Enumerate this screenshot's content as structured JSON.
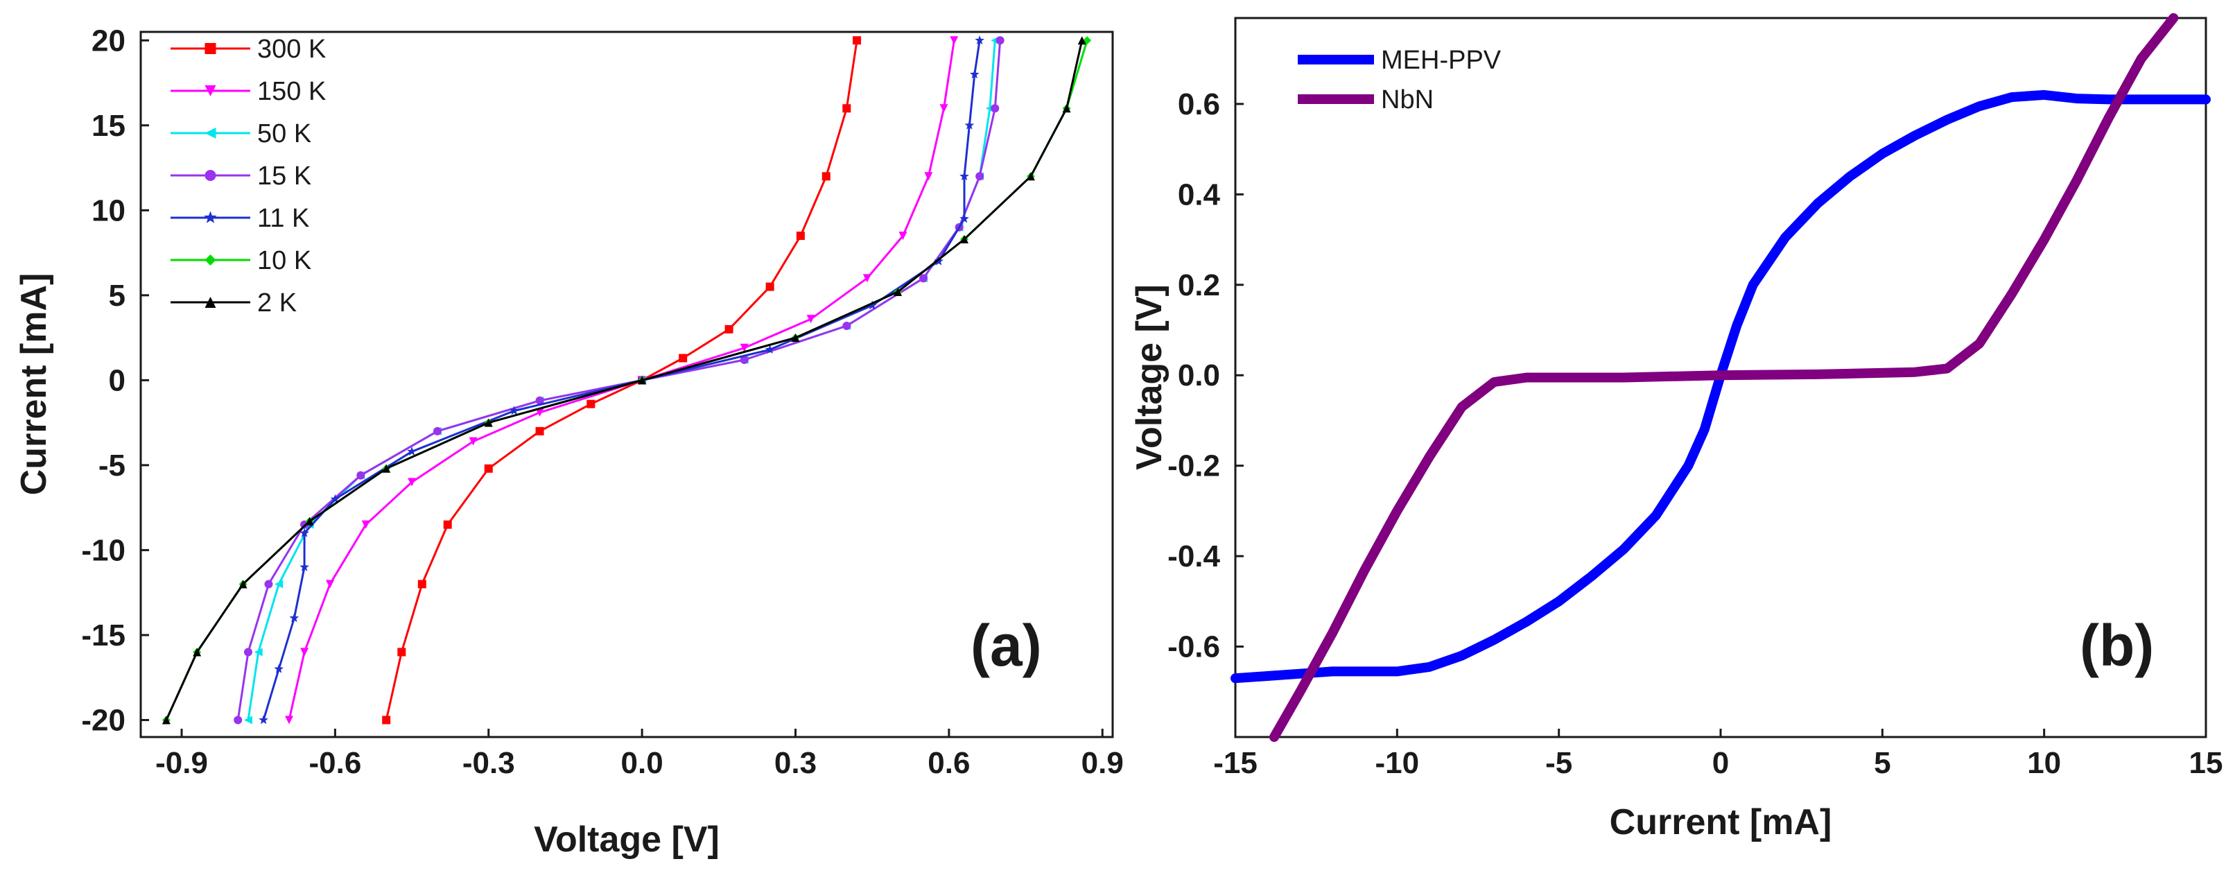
{
  "chart_data": [
    {
      "type": "line",
      "panel_label": "(a)",
      "xlabel": "Voltage [V]",
      "ylabel": "Current [mA]",
      "xlim": [
        -0.98,
        0.92
      ],
      "ylim": [
        -21,
        20.5
      ],
      "xticks": [
        -0.9,
        -0.6,
        -0.3,
        0.0,
        0.3,
        0.6,
        0.9
      ],
      "xtick_labels": [
        "-0.9",
        "-0.6",
        "-0.3",
        "0.0",
        "0.3",
        "0.6",
        "0.9"
      ],
      "yticks": [
        -20,
        -15,
        -10,
        -5,
        0,
        5,
        10,
        15,
        20
      ],
      "ytick_labels": [
        "-20",
        "-15",
        "-10",
        "-5",
        "0",
        "5",
        "10",
        "15",
        "20"
      ],
      "legend_position": "top-left",
      "series": [
        {
          "name": "300 K",
          "legend_label": "300 K",
          "color": "#ff0000",
          "marker": "square",
          "points": [
            [
              -0.5,
              -20
            ],
            [
              -0.47,
              -16
            ],
            [
              -0.43,
              -12
            ],
            [
              -0.38,
              -8.5
            ],
            [
              -0.3,
              -5.2
            ],
            [
              -0.2,
              -3
            ],
            [
              -0.1,
              -1.4
            ],
            [
              0,
              0
            ],
            [
              0.08,
              1.3
            ],
            [
              0.17,
              3
            ],
            [
              0.25,
              5.5
            ],
            [
              0.31,
              8.5
            ],
            [
              0.36,
              12
            ],
            [
              0.4,
              16
            ],
            [
              0.42,
              20
            ]
          ]
        },
        {
          "name": "150 K",
          "legend_label": "150 K",
          "color": "#ff00ff",
          "marker": "triangle-down",
          "points": [
            [
              -0.69,
              -20
            ],
            [
              -0.66,
              -16
            ],
            [
              -0.61,
              -12
            ],
            [
              -0.54,
              -8.5
            ],
            [
              -0.45,
              -6
            ],
            [
              -0.33,
              -3.6
            ],
            [
              -0.2,
              -1.9
            ],
            [
              0,
              0
            ],
            [
              0.2,
              1.9
            ],
            [
              0.33,
              3.6
            ],
            [
              0.44,
              6
            ],
            [
              0.51,
              8.5
            ],
            [
              0.56,
              12
            ],
            [
              0.59,
              16
            ],
            [
              0.61,
              20
            ]
          ]
        },
        {
          "name": "50 K",
          "legend_label": "50 K",
          "color": "#00e5ee",
          "marker": "triangle-left",
          "points": [
            [
              -0.77,
              -20
            ],
            [
              -0.75,
              -16
            ],
            [
              -0.71,
              -12
            ],
            [
              -0.65,
              -8.5
            ],
            [
              -0.55,
              -5.6
            ],
            [
              -0.4,
              -3
            ],
            [
              -0.2,
              -1.2
            ],
            [
              0,
              0
            ],
            [
              0.2,
              1.2
            ],
            [
              0.4,
              3.2
            ],
            [
              0.55,
              6
            ],
            [
              0.62,
              9
            ],
            [
              0.66,
              12
            ],
            [
              0.68,
              16
            ],
            [
              0.69,
              20
            ]
          ]
        },
        {
          "name": "15 K",
          "legend_label": "15 K",
          "color": "#9933ee",
          "marker": "circle",
          "points": [
            [
              -0.79,
              -20
            ],
            [
              -0.77,
              -16
            ],
            [
              -0.73,
              -12
            ],
            [
              -0.66,
              -8.5
            ],
            [
              -0.55,
              -5.6
            ],
            [
              -0.4,
              -3
            ],
            [
              -0.2,
              -1.2
            ],
            [
              0,
              0
            ],
            [
              0.2,
              1.2
            ],
            [
              0.4,
              3.2
            ],
            [
              0.55,
              6
            ],
            [
              0.62,
              9
            ],
            [
              0.66,
              12
            ],
            [
              0.69,
              16
            ],
            [
              0.7,
              20
            ]
          ]
        },
        {
          "name": "11 K",
          "legend_label": " 11 K",
          "color": "#1f2fd0",
          "marker": "star",
          "points": [
            [
              -0.74,
              -20
            ],
            [
              -0.71,
              -17
            ],
            [
              -0.68,
              -14
            ],
            [
              -0.66,
              -11
            ],
            [
              -0.66,
              -9
            ],
            [
              -0.6,
              -7
            ],
            [
              -0.45,
              -4.2
            ],
            [
              -0.25,
              -1.8
            ],
            [
              0,
              0
            ],
            [
              0.25,
              1.8
            ],
            [
              0.45,
              4.4
            ],
            [
              0.58,
              7
            ],
            [
              0.63,
              9.5
            ],
            [
              0.63,
              12
            ],
            [
              0.64,
              15
            ],
            [
              0.65,
              18
            ],
            [
              0.66,
              20
            ]
          ]
        },
        {
          "name": "10 K",
          "legend_label": "10 K",
          "color": "#00dd00",
          "marker": "diamond",
          "points": [
            [
              -0.93,
              -20
            ],
            [
              -0.87,
              -16
            ],
            [
              -0.78,
              -12
            ],
            [
              -0.65,
              -8.3
            ],
            [
              -0.5,
              -5.2
            ],
            [
              -0.3,
              -2.5
            ],
            [
              0,
              0
            ],
            [
              0.3,
              2.5
            ],
            [
              0.5,
              5.2
            ],
            [
              0.63,
              8.3
            ],
            [
              0.76,
              12
            ],
            [
              0.83,
              16
            ],
            [
              0.87,
              20
            ]
          ]
        },
        {
          "name": "2 K",
          "legend_label": "2 K",
          "color": "#000000",
          "marker": "triangle-up",
          "points": [
            [
              -0.93,
              -20
            ],
            [
              -0.87,
              -16
            ],
            [
              -0.78,
              -12
            ],
            [
              -0.65,
              -8.3
            ],
            [
              -0.5,
              -5.2
            ],
            [
              -0.3,
              -2.5
            ],
            [
              0,
              0
            ],
            [
              0.3,
              2.5
            ],
            [
              0.5,
              5.2
            ],
            [
              0.63,
              8.3
            ],
            [
              0.76,
              12
            ],
            [
              0.83,
              16
            ],
            [
              0.86,
              20
            ]
          ]
        }
      ]
    },
    {
      "type": "line",
      "panel_label": "(b)",
      "xlabel": "Current [mA]",
      "ylabel": "Voltage [V]",
      "xlim": [
        -15,
        15
      ],
      "ylim": [
        -0.8,
        0.79
      ],
      "xticks": [
        -15,
        -10,
        -5,
        0,
        5,
        10,
        15
      ],
      "xtick_labels": [
        "-15",
        "-10",
        "-5",
        "0",
        "5",
        "10",
        "15"
      ],
      "yticks": [
        -0.6,
        -0.4,
        -0.2,
        0.0,
        0.2,
        0.4,
        0.6
      ],
      "ytick_labels": [
        "-0.6",
        "-0.4",
        "-0.2",
        "0.0",
        "0.2",
        "0.4",
        "0.6"
      ],
      "legend_position": "top-left",
      "series": [
        {
          "name": "MEH-PPV",
          "legend_label": "MEH-PPV",
          "color": "#0000ff",
          "points": [
            [
              -15,
              -0.67
            ],
            [
              -14,
              -0.665
            ],
            [
              -13,
              -0.66
            ],
            [
              -12,
              -0.655
            ],
            [
              -11,
              -0.655
            ],
            [
              -10,
              -0.655
            ],
            [
              -9,
              -0.645
            ],
            [
              -8,
              -0.62
            ],
            [
              -7,
              -0.585
            ],
            [
              -6,
              -0.545
            ],
            [
              -5,
              -0.5
            ],
            [
              -4,
              -0.445
            ],
            [
              -3,
              -0.385
            ],
            [
              -2,
              -0.31
            ],
            [
              -1,
              -0.2
            ],
            [
              -0.5,
              -0.12
            ],
            [
              0,
              0
            ],
            [
              0.5,
              0.11
            ],
            [
              1,
              0.2
            ],
            [
              2,
              0.305
            ],
            [
              3,
              0.38
            ],
            [
              4,
              0.44
            ],
            [
              5,
              0.49
            ],
            [
              6,
              0.53
            ],
            [
              7,
              0.565
            ],
            [
              8,
              0.595
            ],
            [
              9,
              0.615
            ],
            [
              10,
              0.62
            ],
            [
              11,
              0.612
            ],
            [
              12,
              0.61
            ],
            [
              13,
              0.61
            ],
            [
              14,
              0.61
            ],
            [
              15,
              0.61
            ]
          ]
        },
        {
          "name": "NbN",
          "legend_label": "NbN",
          "color": "#800080",
          "points": [
            [
              -13.8,
              -0.8
            ],
            [
              -13.0,
              -0.7
            ],
            [
              -12.0,
              -0.57
            ],
            [
              -11.0,
              -0.43
            ],
            [
              -10.0,
              -0.3
            ],
            [
              -9.0,
              -0.18
            ],
            [
              -8.0,
              -0.07
            ],
            [
              -7.0,
              -0.015
            ],
            [
              -6.0,
              -0.005
            ],
            [
              -3,
              -0.005
            ],
            [
              0,
              0
            ],
            [
              3,
              0.002
            ],
            [
              6,
              0.007
            ],
            [
              7,
              0.015
            ],
            [
              8,
              0.07
            ],
            [
              9,
              0.18
            ],
            [
              10,
              0.3
            ],
            [
              11,
              0.43
            ],
            [
              12,
              0.57
            ],
            [
              13,
              0.7
            ],
            [
              14,
              0.79
            ]
          ]
        }
      ]
    }
  ]
}
